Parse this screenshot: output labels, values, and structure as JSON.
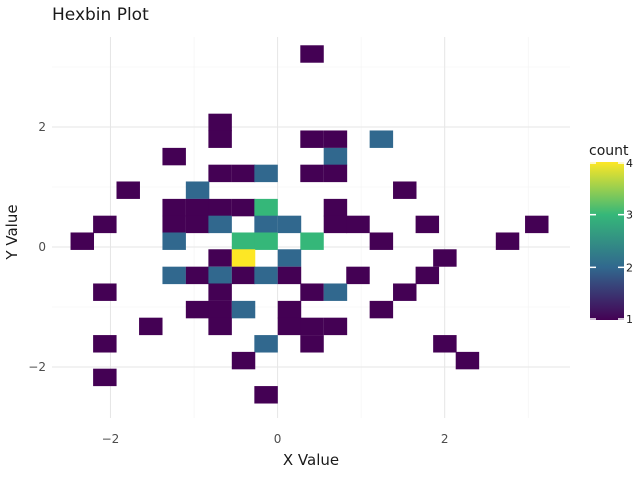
{
  "chart_data": {
    "type": "heatmap",
    "title": "Hexbin Plot",
    "xlabel": "X Value",
    "ylabel": "Y Value",
    "xlim": [
      -2.7,
      3.5
    ],
    "ylim": [
      -2.85,
      3.5
    ],
    "xticks": [
      -2,
      0,
      2
    ],
    "xtick_labels": [
      "−2",
      "0",
      "2"
    ],
    "yticks": [
      -2,
      0,
      2
    ],
    "ytick_labels": [
      "−2",
      "0",
      "2"
    ],
    "grid": true,
    "legend": {
      "title": "count",
      "position": "right",
      "range": [
        1,
        4
      ],
      "ticks": [
        1,
        2,
        3,
        4
      ],
      "tick_labels": [
        "1",
        "2",
        "3",
        "4"
      ]
    },
    "colormap": [
      "#440154",
      "#31688e",
      "#35b779",
      "#fde725"
    ],
    "bin_size": [
      0.276,
      0.284
    ],
    "cells": [
      {
        "x": 0.41,
        "y": 3.22,
        "count": 1
      },
      {
        "x": -0.69,
        "y": 2.08,
        "count": 1
      },
      {
        "x": -0.69,
        "y": 1.8,
        "count": 1
      },
      {
        "x": 0.41,
        "y": 1.8,
        "count": 1
      },
      {
        "x": 0.69,
        "y": 1.8,
        "count": 1
      },
      {
        "x": 1.24,
        "y": 1.8,
        "count": 2
      },
      {
        "x": -1.24,
        "y": 1.51,
        "count": 1
      },
      {
        "x": 0.69,
        "y": 1.51,
        "count": 2
      },
      {
        "x": -0.69,
        "y": 1.23,
        "count": 1
      },
      {
        "x": -0.41,
        "y": 1.23,
        "count": 1
      },
      {
        "x": -0.14,
        "y": 1.23,
        "count": 2
      },
      {
        "x": 0.41,
        "y": 1.23,
        "count": 1
      },
      {
        "x": 0.69,
        "y": 1.23,
        "count": 1
      },
      {
        "x": -1.79,
        "y": 0.95,
        "count": 1
      },
      {
        "x": -0.96,
        "y": 0.95,
        "count": 2
      },
      {
        "x": 1.52,
        "y": 0.95,
        "count": 1
      },
      {
        "x": -1.24,
        "y": 0.66,
        "count": 1
      },
      {
        "x": -0.96,
        "y": 0.66,
        "count": 1
      },
      {
        "x": -0.69,
        "y": 0.66,
        "count": 1
      },
      {
        "x": -0.41,
        "y": 0.66,
        "count": 1
      },
      {
        "x": -0.14,
        "y": 0.66,
        "count": 3
      },
      {
        "x": 0.69,
        "y": 0.66,
        "count": 1
      },
      {
        "x": -2.07,
        "y": 0.38,
        "count": 1
      },
      {
        "x": -1.24,
        "y": 0.38,
        "count": 1
      },
      {
        "x": -0.96,
        "y": 0.38,
        "count": 1
      },
      {
        "x": -0.69,
        "y": 0.38,
        "count": 2
      },
      {
        "x": -0.14,
        "y": 0.38,
        "count": 2
      },
      {
        "x": 0.14,
        "y": 0.38,
        "count": 2
      },
      {
        "x": 0.69,
        "y": 0.38,
        "count": 1
      },
      {
        "x": 0.96,
        "y": 0.38,
        "count": 1
      },
      {
        "x": 1.79,
        "y": 0.38,
        "count": 1
      },
      {
        "x": 3.1,
        "y": 0.38,
        "count": 1
      },
      {
        "x": -2.34,
        "y": 0.1,
        "count": 1
      },
      {
        "x": -1.24,
        "y": 0.1,
        "count": 2
      },
      {
        "x": -0.41,
        "y": 0.1,
        "count": 3
      },
      {
        "x": -0.14,
        "y": 0.1,
        "count": 3
      },
      {
        "x": 0.41,
        "y": 0.1,
        "count": 3
      },
      {
        "x": 1.24,
        "y": 0.1,
        "count": 1
      },
      {
        "x": 2.75,
        "y": 0.1,
        "count": 1
      },
      {
        "x": -0.69,
        "y": -0.18,
        "count": 1
      },
      {
        "x": -0.41,
        "y": -0.18,
        "count": 4
      },
      {
        "x": 0.14,
        "y": -0.18,
        "count": 2
      },
      {
        "x": 2.0,
        "y": -0.18,
        "count": 1
      },
      {
        "x": -1.24,
        "y": -0.47,
        "count": 2
      },
      {
        "x": -0.96,
        "y": -0.47,
        "count": 1
      },
      {
        "x": -0.69,
        "y": -0.47,
        "count": 2
      },
      {
        "x": -0.41,
        "y": -0.47,
        "count": 1
      },
      {
        "x": -0.14,
        "y": -0.47,
        "count": 2
      },
      {
        "x": 0.14,
        "y": -0.47,
        "count": 1
      },
      {
        "x": 0.96,
        "y": -0.47,
        "count": 1
      },
      {
        "x": 1.79,
        "y": -0.47,
        "count": 1
      },
      {
        "x": -2.07,
        "y": -0.75,
        "count": 1
      },
      {
        "x": -0.69,
        "y": -0.75,
        "count": 1
      },
      {
        "x": 0.41,
        "y": -0.75,
        "count": 1
      },
      {
        "x": 0.69,
        "y": -0.75,
        "count": 2
      },
      {
        "x": 1.52,
        "y": -0.75,
        "count": 1
      },
      {
        "x": -0.96,
        "y": -1.04,
        "count": 1
      },
      {
        "x": -0.69,
        "y": -1.04,
        "count": 1
      },
      {
        "x": -0.41,
        "y": -1.04,
        "count": 2
      },
      {
        "x": 0.14,
        "y": -1.04,
        "count": 1
      },
      {
        "x": 1.24,
        "y": -1.04,
        "count": 1
      },
      {
        "x": -1.52,
        "y": -1.32,
        "count": 1
      },
      {
        "x": -0.69,
        "y": -1.32,
        "count": 1
      },
      {
        "x": 0.14,
        "y": -1.32,
        "count": 1
      },
      {
        "x": 0.41,
        "y": -1.32,
        "count": 1
      },
      {
        "x": 0.69,
        "y": -1.32,
        "count": 1
      },
      {
        "x": -2.07,
        "y": -1.61,
        "count": 1
      },
      {
        "x": -0.14,
        "y": -1.61,
        "count": 2
      },
      {
        "x": 0.41,
        "y": -1.61,
        "count": 1
      },
      {
        "x": 2.0,
        "y": -1.61,
        "count": 1
      },
      {
        "x": -0.41,
        "y": -1.89,
        "count": 1
      },
      {
        "x": 2.27,
        "y": -1.89,
        "count": 1
      },
      {
        "x": -2.07,
        "y": -2.17,
        "count": 1
      },
      {
        "x": -0.14,
        "y": -2.46,
        "count": 1
      }
    ]
  }
}
